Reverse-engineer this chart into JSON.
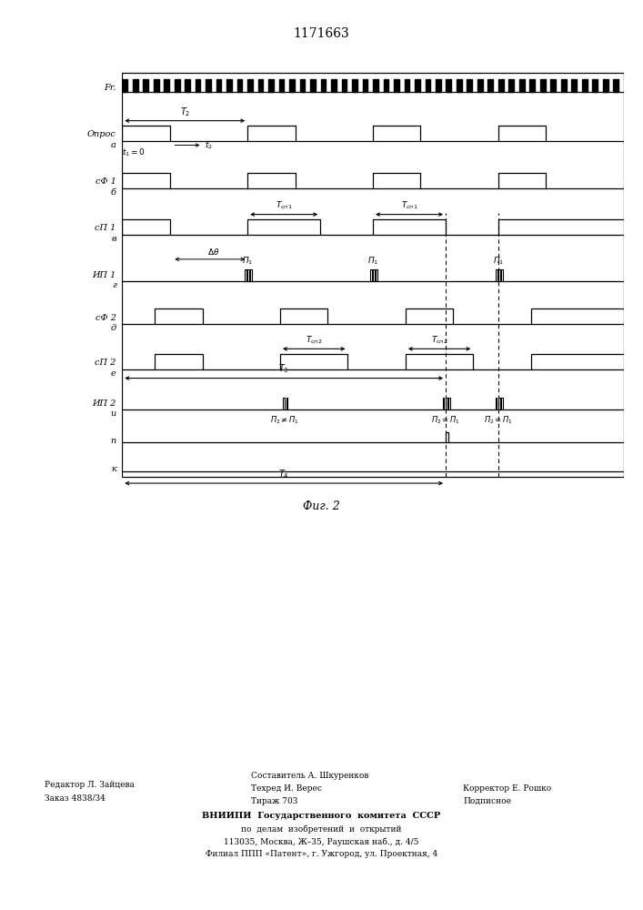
{
  "title": "1171663",
  "fig2_label": "Фиг. 2",
  "background_color": "#ffffff",
  "line_color": "#000000",
  "footer_left_line1": "Редактор Л. Зайцева",
  "footer_left_line2": "Заказ 4838/34",
  "footer_mid_line1": "Составитель А. Шкуренков",
  "footer_mid_line2": "Техред И. Верес",
  "footer_mid_line3": "Тираж 703",
  "footer_right_line1": "Корректор Е. Рошко",
  "footer_right_line2": "Подписное",
  "footer_vnipi_line1": "ВНИИПИ  Государственного  комитета  СССР",
  "footer_vnipi_line2": "по  делам  изобретений  и  открытий",
  "footer_vnipi_line3": "113035, Москва, Ж–35, Раушская наб., д. 4/5",
  "footer_vnipi_line4": "Филиал ППП «Патент», г. Ужгород, ул. Проектная, 4"
}
